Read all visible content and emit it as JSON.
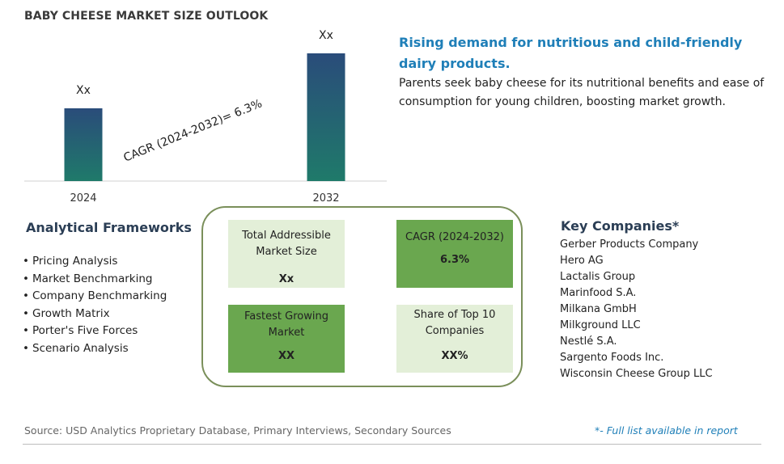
{
  "title": "BABY CHEESE MARKET SIZE OUTLOOK",
  "chart_data": {
    "type": "bar",
    "categories": [
      "2024",
      "2032"
    ],
    "values": [
      90,
      158
    ],
    "data_labels": [
      "Xx",
      "Xx"
    ],
    "annotation": "CAGR (2024-2032)=  6.3%",
    "colors": [
      "#1f5f7a",
      "#2a4c7a"
    ]
  },
  "headline": "Rising demand for nutritious and child-friendly dairy products.",
  "description": "Parents seek baby cheese for its nutritional benefits and ease of consumption for young children, boosting market growth.",
  "analytical_frameworks": {
    "title": "Analytical Frameworks",
    "items": [
      "Pricing Analysis",
      "Market Benchmarking",
      "Company Benchmarking",
      "Growth Matrix",
      "Porter's Five Forces",
      "Scenario Analysis"
    ]
  },
  "metrics": [
    {
      "label": "Total Addressible Market Size",
      "value": "Xx"
    },
    {
      "label": "CAGR (2024-2032)",
      "value": "6.3%"
    },
    {
      "label": "Fastest Growing Market",
      "value": "XX"
    },
    {
      "label": "Share of Top 10 Companies",
      "value": "XX%"
    }
  ],
  "key_companies": {
    "title": "Key Companies*",
    "items": [
      "Gerber Products Company",
      "Hero AG",
      "Lactalis Group",
      "Marinfood S.A.",
      "Milkana GmbH",
      "Milkground LLC",
      "Nestlé S.A.",
      "Sargento Foods Inc.",
      "Wisconsin Cheese Group LLC"
    ]
  },
  "source": "Source: USD Analytics Proprietary Database, Primary Interviews, Secondary Sources",
  "footnote": "*- Full list available in report",
  "colors": {
    "accent_blue": "#1f7fb8",
    "green_dark": "#6aa74f",
    "green_light": "#e3efd8",
    "frame_border": "#7a8f5a"
  }
}
